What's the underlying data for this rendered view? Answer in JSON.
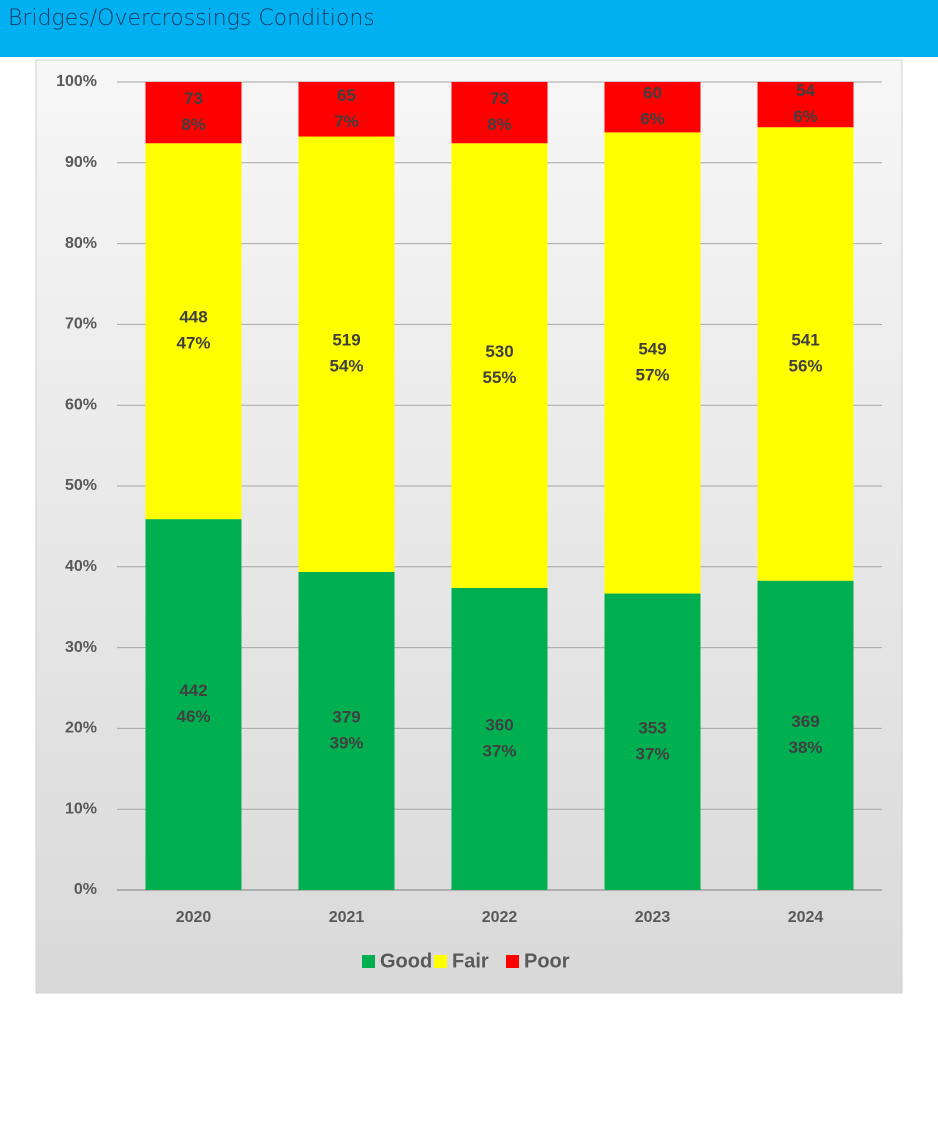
{
  "header": {
    "title": "Bridges/Overcrossings Conditions"
  },
  "chart_data": {
    "type": "stacked_bar",
    "categories": [
      "2020",
      "2021",
      "2022",
      "2023",
      "2024"
    ],
    "series": [
      {
        "name": "Good",
        "color": "#00b050",
        "values": [
          45.9,
          39.36,
          37.38,
          36.69,
          38.28
        ],
        "value_labels": [
          "46%",
          "39%",
          "37%",
          "37%",
          "38%"
        ],
        "counts": [
          442,
          379,
          360,
          353,
          369
        ]
      },
      {
        "name": "Fair",
        "color": "#ffff00",
        "values": [
          46.52,
          53.89,
          55.04,
          57.07,
          56.12
        ],
        "value_labels": [
          "47%",
          "54%",
          "55%",
          "57%",
          "56%"
        ],
        "counts": [
          448,
          519,
          530,
          549,
          541
        ]
      },
      {
        "name": "Poor",
        "color": "#ff0000",
        "values": [
          7.58,
          6.75,
          7.58,
          6.24,
          5.6
        ],
        "value_labels": [
          "8%",
          "7%",
          "8%",
          "6%",
          "6%"
        ],
        "counts": [
          73,
          65,
          73,
          60,
          54
        ]
      }
    ],
    "ylim": [
      0,
      100
    ],
    "yticks": [
      {
        "value": 0,
        "label": "0%"
      },
      {
        "value": 10,
        "label": "10%"
      },
      {
        "value": 20,
        "label": "20%"
      },
      {
        "value": 30,
        "label": "30%"
      },
      {
        "value": 40,
        "label": "40%"
      },
      {
        "value": 50,
        "label": "50%"
      },
      {
        "value": 60,
        "label": "60%"
      },
      {
        "value": 70,
        "label": "70%"
      },
      {
        "value": 80,
        "label": "80%"
      },
      {
        "value": 90,
        "label": "90%"
      },
      {
        "value": 100,
        "label": "100%"
      }
    ],
    "grid": true,
    "legend": "bottom"
  }
}
